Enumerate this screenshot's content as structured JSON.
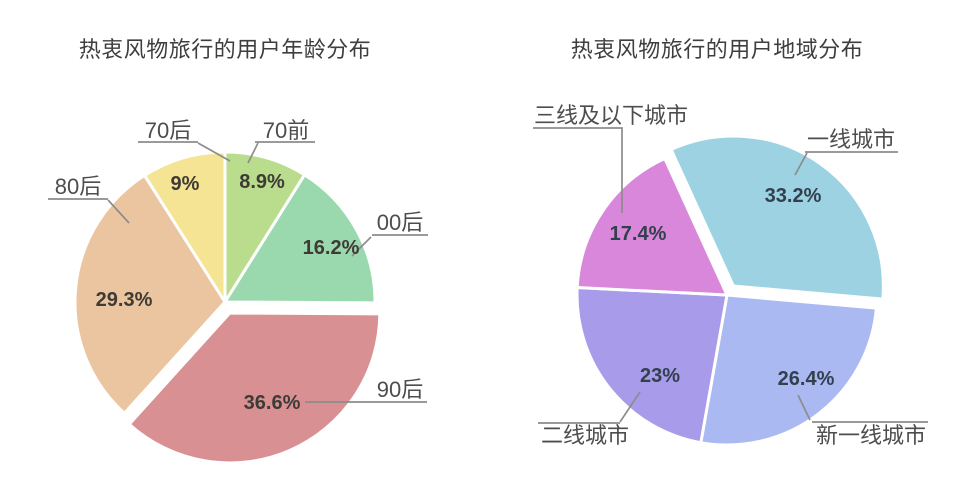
{
  "page": {
    "background": "#ffffff"
  },
  "chart_data": [
    {
      "type": "pie",
      "title": "热衷风物旅行的用户年龄分布",
      "unit": "%",
      "start_angle_deg": 0,
      "direction": "clockwise",
      "legend_position": "outside-callouts",
      "grid": false,
      "colors": {
        "value_label": "#3e3a36",
        "callout_text": "#4d4d4d",
        "callout_line": "#8c8c8c",
        "slice_gap": "#ffffff"
      },
      "slices": [
        {
          "label": "70前",
          "value": 8.9,
          "display": "8.9%",
          "color": "#b9dd8c",
          "exploded": false
        },
        {
          "label": "00后",
          "value": 16.2,
          "display": "16.2%",
          "color": "#9ad8ae",
          "exploded": false
        },
        {
          "label": "90后",
          "value": 36.6,
          "display": "36.6%",
          "color": "#d99092",
          "exploded": true
        },
        {
          "label": "80后",
          "value": 29.3,
          "display": "29.3%",
          "color": "#ebc59f",
          "exploded": false
        },
        {
          "label": "70后",
          "value": 9,
          "display": "9%",
          "color": "#f5e493",
          "exploded": false
        }
      ]
    },
    {
      "type": "pie",
      "title": "热衷风物旅行的用户地域分布",
      "unit": "%",
      "start_angle_deg": -24.5,
      "direction": "clockwise",
      "legend_position": "outside-callouts",
      "grid": false,
      "colors": {
        "value_label": "#32404e",
        "callout_text": "#4d4d4d",
        "callout_line": "#8c8c8c",
        "slice_gap": "#ffffff"
      },
      "slices": [
        {
          "label": "一线城市",
          "value": 33.2,
          "display": "33.2%",
          "color": "#9cd2e2",
          "exploded": true
        },
        {
          "label": "新一线城市",
          "value": 26.4,
          "display": "26.4%",
          "color": "#aab9f2",
          "exploded": false
        },
        {
          "label": "二线城市",
          "value": 23,
          "display": "23%",
          "color": "#a89cea",
          "exploded": false
        },
        {
          "label": "三线及以下城市",
          "value": 17.4,
          "display": "17.4%",
          "color": "#d987da",
          "exploded": false
        }
      ]
    }
  ]
}
